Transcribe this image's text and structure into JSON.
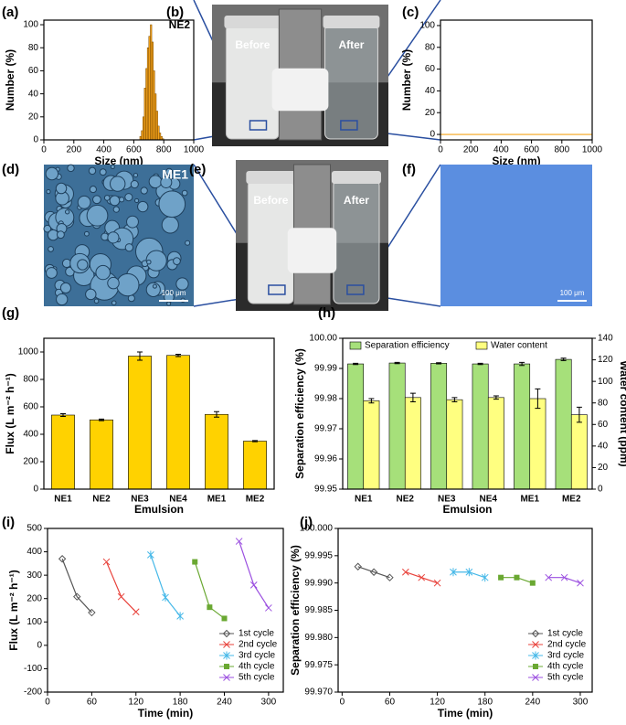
{
  "chart_data": [
    {
      "type": "histogram",
      "panel_label": "(a)",
      "annotation": "NE2",
      "xlabel": "Size (nm)",
      "ylabel": "Number (%)",
      "bins": [
        640,
        650,
        660,
        670,
        680,
        690,
        700,
        710,
        720,
        730,
        740,
        750,
        760,
        770,
        780,
        790,
        800
      ],
      "values": [
        3,
        8,
        20,
        45,
        62,
        80,
        90,
        100,
        85,
        60,
        40,
        25,
        12,
        6,
        3,
        1
      ],
      "color": "#f5a31a",
      "xlim": [
        0,
        1000
      ],
      "xticks": [
        0,
        200,
        400,
        600,
        800,
        1000
      ],
      "ylim": [
        0,
        104
      ],
      "yticks": [
        0,
        20,
        40,
        60,
        80,
        100
      ]
    },
    {
      "type": "photo",
      "panel_label": "(b)",
      "labels": [
        "Before",
        "After"
      ]
    },
    {
      "type": "line",
      "panel_label": "(c)",
      "xlabel": "Size (nm)",
      "ylabel": "Number (%)",
      "x": [
        0,
        1000
      ],
      "values": [
        0,
        0
      ],
      "color": "#f5a31a",
      "xlim": [
        0,
        1000
      ],
      "xticks": [
        0,
        200,
        400,
        600,
        800,
        1000
      ],
      "ylim": [
        -5,
        105
      ],
      "yticks": [
        0,
        20,
        40,
        60,
        80,
        100
      ]
    },
    {
      "type": "micrograph",
      "panel_label": "(d)",
      "annotation": "ME1",
      "scale_bar": "100 μm"
    },
    {
      "type": "photo",
      "panel_label": "(e)",
      "labels": [
        "Before",
        "After"
      ]
    },
    {
      "type": "uniform-image",
      "panel_label": "(f)",
      "scale_bar": "100 μm"
    },
    {
      "type": "bar",
      "panel_label": "(g)",
      "xlabel": "Emulsion",
      "ylabel": "Flux (L m⁻² h⁻¹)",
      "categories": [
        "NE1",
        "NE2",
        "NE3",
        "NE4",
        "ME1",
        "ME2"
      ],
      "values": [
        540,
        505,
        970,
        975,
        545,
        350
      ],
      "errors": [
        10,
        6,
        30,
        8,
        20,
        4
      ],
      "color": "#ffd200",
      "ylim": [
        0,
        1100
      ],
      "yticks": [
        0,
        200,
        400,
        600,
        800,
        1000
      ]
    },
    {
      "type": "bar",
      "panel_label": "(h)",
      "xlabel": "Emulsion",
      "ylabel": "Separation efficiency (%)",
      "y2label": "Water content (ppm)",
      "categories": [
        "NE1",
        "NE2",
        "NE3",
        "NE4",
        "ME1",
        "ME2"
      ],
      "series": [
        {
          "name": "Separation efficiency",
          "color": "#a6e07a",
          "values": [
            99.9915,
            99.9918,
            99.9917,
            99.9915,
            99.9915,
            99.993
          ],
          "errors": [
            0.0002,
            0.0002,
            0.0002,
            0.0002,
            0.0005,
            0.0004
          ]
        },
        {
          "name": "Water content",
          "color": "#ffff80",
          "axis": "y2",
          "values": [
            82,
            85,
            83,
            85,
            84,
            69
          ],
          "errors": [
            2,
            4,
            2,
            1.5,
            9,
            7
          ]
        }
      ],
      "ylim": [
        99.95,
        100
      ],
      "yticks": [
        99.95,
        99.96,
        99.97,
        99.98,
        99.99,
        {
          "value": 100,
          "label": "100.00"
        }
      ],
      "y2lim": [
        0,
        140
      ],
      "y2ticks": [
        0,
        20,
        40,
        60,
        80,
        100,
        120,
        140
      ],
      "legend": "top"
    },
    {
      "type": "line",
      "panel_label": "(i)",
      "xlabel": "Time (min)",
      "ylabel": "Flux (L m⁻² h⁻¹)",
      "x": [
        20,
        40,
        60,
        80,
        100,
        120,
        140,
        160,
        180,
        200,
        220,
        240,
        260,
        280,
        300
      ],
      "series": [
        {
          "name": "1st cycle",
          "color": "#555555",
          "marker": "diamond",
          "values": [
            370,
            208,
            140,
            null,
            null,
            null,
            null,
            null,
            null,
            null,
            null,
            null,
            null,
            null,
            null
          ]
        },
        {
          "name": "2nd cycle",
          "color": "#e8413a",
          "marker": "x",
          "values": [
            null,
            null,
            null,
            357,
            208,
            143,
            null,
            null,
            null,
            null,
            null,
            null,
            null,
            null,
            null
          ]
        },
        {
          "name": "3rd cycle",
          "color": "#45b8e8",
          "marker": "star",
          "values": [
            null,
            null,
            null,
            null,
            null,
            null,
            387,
            205,
            125,
            null,
            null,
            null,
            null,
            null,
            null
          ]
        },
        {
          "name": "4th cycle",
          "color": "#6aa832",
          "marker": "square",
          "values": [
            null,
            null,
            null,
            null,
            null,
            null,
            null,
            null,
            null,
            357,
            163,
            115,
            null,
            null,
            null
          ]
        },
        {
          "name": "5th cycle",
          "color": "#9b4fe0",
          "marker": "x",
          "values": [
            null,
            null,
            null,
            null,
            null,
            null,
            null,
            null,
            null,
            null,
            null,
            null,
            445,
            258,
            160
          ]
        }
      ],
      "xlim": [
        0,
        320
      ],
      "xticks": [
        0,
        60,
        120,
        180,
        240,
        300
      ],
      "ylim": [
        -200,
        500
      ],
      "yticks": [
        -200,
        -100,
        0,
        100,
        200,
        300,
        400,
        500
      ],
      "legend": "lower right"
    },
    {
      "type": "line",
      "panel_label": "(j)",
      "xlabel": "Time (min)",
      "ylabel": "Separation efficiency (%)",
      "x": [
        20,
        40,
        60,
        80,
        100,
        120,
        140,
        160,
        180,
        200,
        220,
        240,
        260,
        280,
        300
      ],
      "series": [
        {
          "name": "1st cycle",
          "color": "#555555",
          "marker": "diamond",
          "values": [
            99.993,
            99.992,
            99.991,
            null,
            null,
            null,
            null,
            null,
            null,
            null,
            null,
            null,
            null,
            null,
            null
          ]
        },
        {
          "name": "2nd cycle",
          "color": "#e8413a",
          "marker": "x",
          "values": [
            null,
            null,
            null,
            99.992,
            99.991,
            99.99,
            null,
            null,
            null,
            null,
            null,
            null,
            null,
            null,
            null
          ]
        },
        {
          "name": "3rd cycle",
          "color": "#45b8e8",
          "marker": "star",
          "values": [
            null,
            null,
            null,
            null,
            null,
            null,
            99.992,
            99.992,
            99.991,
            null,
            null,
            null,
            null,
            null,
            null
          ]
        },
        {
          "name": "4th cycle",
          "color": "#6aa832",
          "marker": "square",
          "values": [
            null,
            null,
            null,
            null,
            null,
            null,
            null,
            null,
            null,
            99.991,
            99.991,
            99.99,
            null,
            null,
            null
          ]
        },
        {
          "name": "5th cycle",
          "color": "#9b4fe0",
          "marker": "x",
          "values": [
            null,
            null,
            null,
            null,
            null,
            null,
            null,
            null,
            null,
            null,
            null,
            null,
            99.991,
            99.991,
            99.99
          ]
        }
      ],
      "xlim": [
        -5,
        315
      ],
      "xticks": [
        0,
        60,
        120,
        180,
        240,
        300
      ],
      "ylim": [
        99.97,
        100
      ],
      "yticks": [
        {
          "value": 99.97,
          "label": "99.970"
        },
        99.975,
        {
          "value": 99.98,
          "label": "99.980"
        },
        99.985,
        {
          "value": 99.99,
          "label": "99.990"
        },
        99.995,
        {
          "value": 100,
          "label": "100.000"
        }
      ],
      "legend": "lower right"
    }
  ]
}
